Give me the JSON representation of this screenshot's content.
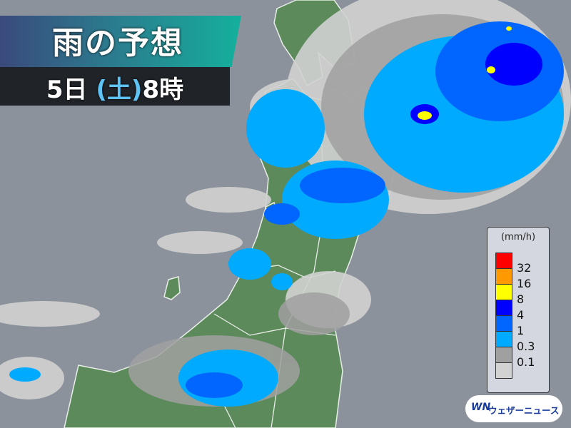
{
  "title": "雨の予想",
  "subtitle": {
    "day": "5日",
    "weekday": "(土)",
    "hour": "8時"
  },
  "legend": {
    "unit": "(mm/h)",
    "levels": [
      {
        "label": "32",
        "color": "#ff0000"
      },
      {
        "label": "16",
        "color": "#ff9900"
      },
      {
        "label": "8",
        "color": "#ffff00"
      },
      {
        "label": "4",
        "color": "#0000ff"
      },
      {
        "label": "1",
        "color": "#0066ff"
      },
      {
        "label": "0.3",
        "color": "#00aaff"
      },
      {
        "label": "0.1",
        "color": "#a0a0a0"
      },
      {
        "label": "",
        "color": "#d2d2d2"
      }
    ]
  },
  "logo": {
    "mark": "WN",
    "text": "ウェザーニュース"
  },
  "colors": {
    "sea": "#8b929b",
    "land": "#5d8a5b",
    "border": "#e8eee8"
  }
}
